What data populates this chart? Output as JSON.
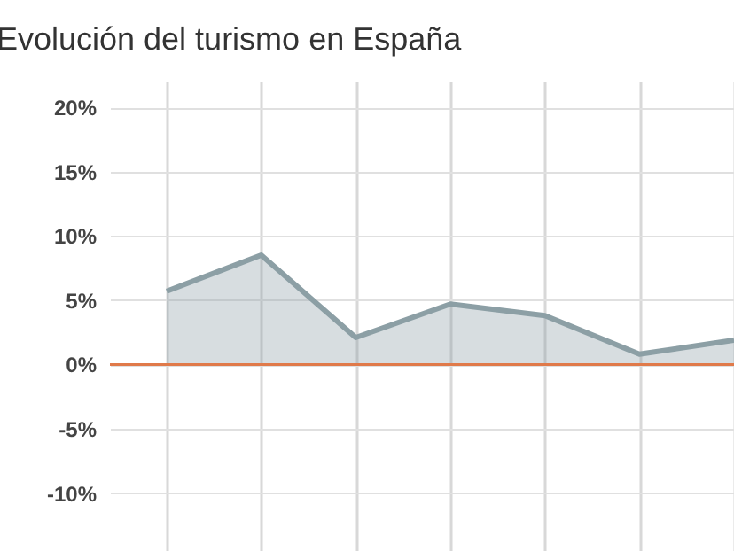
{
  "chart_data": {
    "type": "area",
    "title": "Evolución del turismo en España",
    "categories": [
      null,
      null,
      null,
      null,
      null,
      null,
      null
    ],
    "series": [
      {
        "color": "#8c9fa5",
        "values": [
          5.7,
          8.5,
          2.1,
          4.7,
          3.8,
          0.8,
          1.9
        ]
      }
    ],
    "ylim": [
      -14.5,
      22
    ],
    "yticks": [
      {
        "value": 20,
        "label": "20%"
      },
      {
        "value": 15,
        "label": "15%"
      },
      {
        "value": 10,
        "label": "10%"
      },
      {
        "value": 5,
        "label": "5%"
      },
      {
        "value": 0,
        "label": "0%"
      },
      {
        "value": -5,
        "label": "-5%"
      },
      {
        "value": -10,
        "label": "-10%"
      }
    ],
    "ref_lines": [
      {
        "axis": "y",
        "value": 0,
        "color": "#e07a4a"
      }
    ],
    "grid": true,
    "marker": "none",
    "line_style": "solid",
    "tick_labels": "y"
  }
}
